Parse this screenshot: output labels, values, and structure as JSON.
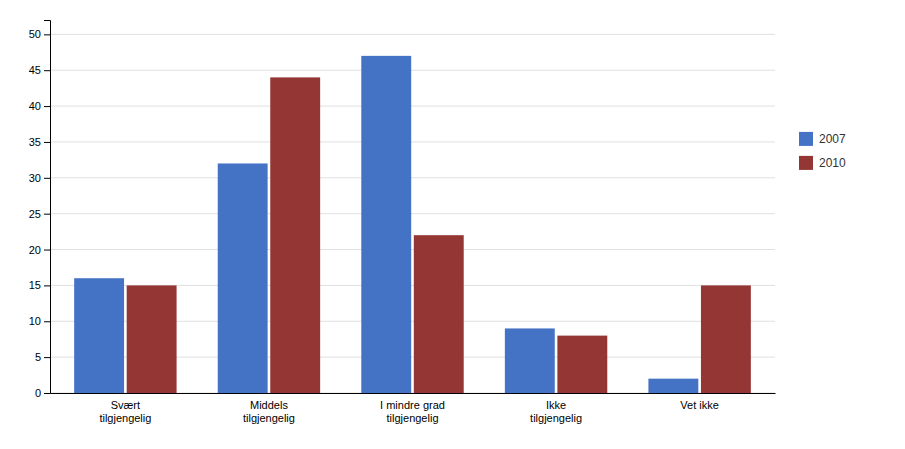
{
  "chart_data": {
    "type": "bar",
    "categories": [
      "Svært\ntilgjengelig",
      "Middels\ntilgjengelig",
      "I mindre grad\ntilgjengelig",
      "Ikke\ntilgjengelig",
      "Vet ikke"
    ],
    "series": [
      {
        "name": "2007",
        "color": "#4472C4",
        "values": [
          16,
          32,
          47,
          9,
          2
        ]
      },
      {
        "name": "2010",
        "color": "#943634",
        "values": [
          15,
          44,
          22,
          8,
          15
        ]
      }
    ],
    "ylim": [
      0,
      52
    ],
    "yticks": [
      0,
      5,
      10,
      15,
      20,
      25,
      30,
      35,
      40,
      45,
      50
    ],
    "grid": true,
    "legend": "right"
  }
}
